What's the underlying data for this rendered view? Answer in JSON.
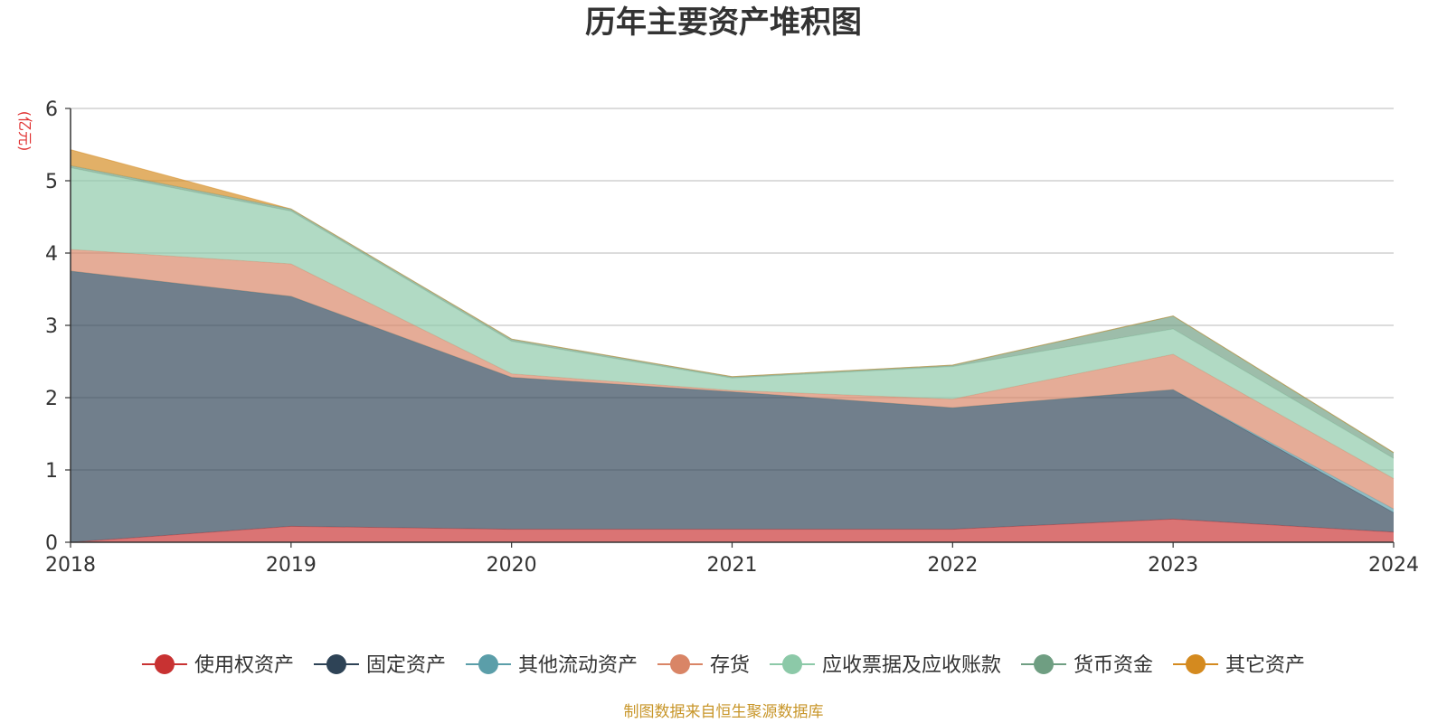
{
  "chart_data": {
    "type": "area",
    "stacked": true,
    "title": "历年主要资产堆积图",
    "unit_label": "(亿元)",
    "source_note": "制图数据来自恒生聚源数据库",
    "x": [
      "2018",
      "2019",
      "2020",
      "2021",
      "2022",
      "2023",
      "2024"
    ],
    "ylim": [
      0,
      6
    ],
    "yticks": [
      "0",
      "1",
      "2",
      "3",
      "4",
      "5",
      "6"
    ],
    "grid": true,
    "legend_position": "bottom",
    "series": [
      {
        "name": "使用权资产",
        "color": "#c83232",
        "values": [
          0.0,
          0.22,
          0.18,
          0.18,
          0.18,
          0.32,
          0.14
        ]
      },
      {
        "name": "固定资产",
        "color": "#2e4356",
        "values": [
          3.75,
          3.18,
          2.1,
          1.9,
          1.68,
          1.79,
          0.27
        ]
      },
      {
        "name": "其他流动资产",
        "color": "#5b9ea9",
        "values": [
          0.0,
          0.0,
          0.0,
          0.0,
          0.0,
          0.0,
          0.05
        ]
      },
      {
        "name": "存货",
        "color": "#d98566",
        "values": [
          0.3,
          0.45,
          0.05,
          0.02,
          0.12,
          0.49,
          0.42
        ]
      },
      {
        "name": "应收票据及应收账款",
        "color": "#8cc9a8",
        "values": [
          1.13,
          0.73,
          0.45,
          0.17,
          0.45,
          0.35,
          0.28
        ]
      },
      {
        "name": "货币资金",
        "color": "#6f9e82",
        "values": [
          0.03,
          0.03,
          0.03,
          0.02,
          0.02,
          0.18,
          0.08
        ]
      },
      {
        "name": "其它资产",
        "color": "#d48a1f",
        "values": [
          0.22,
          0.0,
          0.0,
          0.0,
          0.0,
          0.0,
          0.0
        ]
      }
    ]
  }
}
